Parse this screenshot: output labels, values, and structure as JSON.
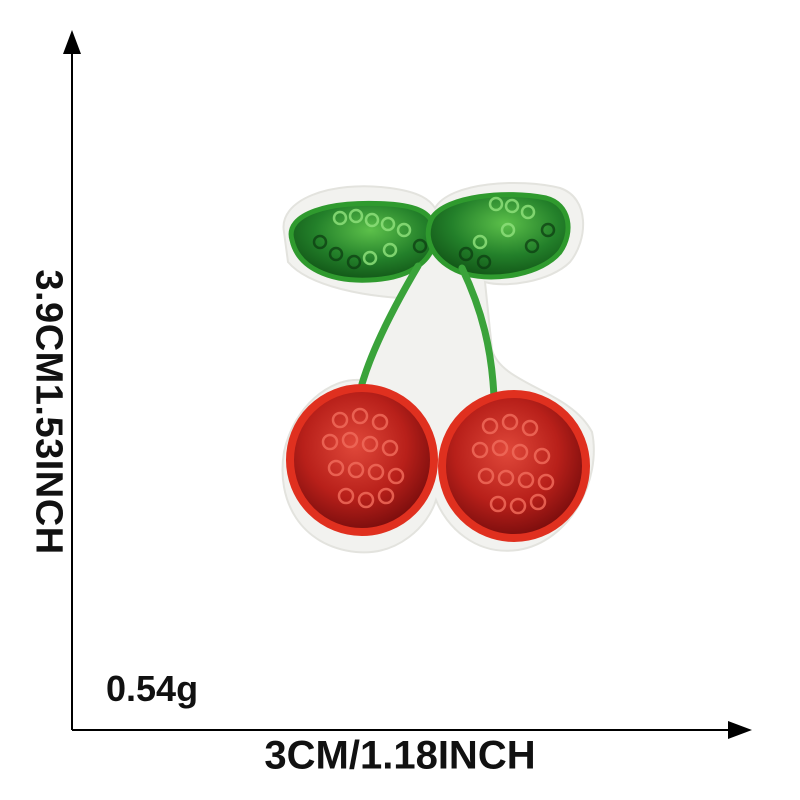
{
  "dimensions": {
    "height_label": "3.9CM1.53INCH",
    "width_label": "3CM/1.18INCH",
    "weight_label": "0.54g"
  },
  "product": {
    "subject": "sequin cherry embroidered patch",
    "colors": {
      "leaf": "#2f9a2e",
      "leaf_dark": "#0f4f14",
      "stem": "#3aa33a",
      "cherry": "#d42a1f",
      "cherry_dark": "#7a0d0d",
      "backing": "#f2f2ef"
    }
  }
}
